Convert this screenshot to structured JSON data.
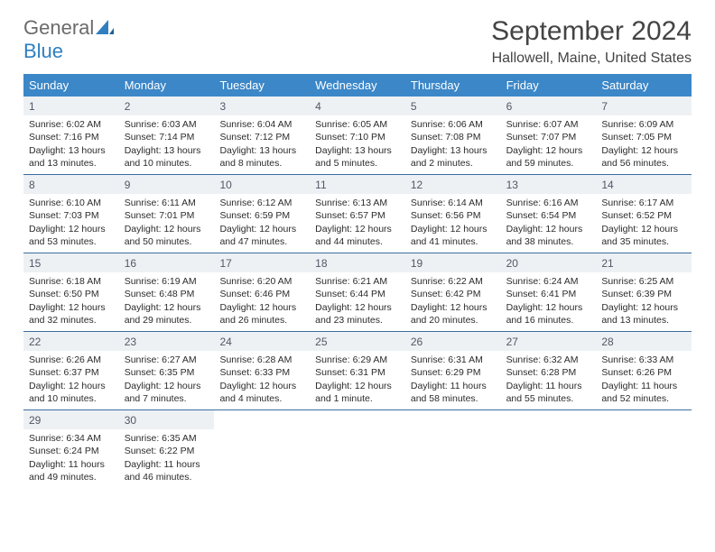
{
  "logo": {
    "text1": "General",
    "text2": "Blue"
  },
  "title": "September 2024",
  "location": "Hallowell, Maine, United States",
  "colors": {
    "header_bg": "#3b87c8",
    "header_text": "#ffffff",
    "daynum_bg": "#eef1f4",
    "row_border": "#3b6ea0",
    "logo_blue": "#2f7fc1",
    "logo_gray": "#6b6b6b"
  },
  "day_headers": [
    "Sunday",
    "Monday",
    "Tuesday",
    "Wednesday",
    "Thursday",
    "Friday",
    "Saturday"
  ],
  "weeks": [
    [
      {
        "n": "1",
        "sr": "Sunrise: 6:02 AM",
        "ss": "Sunset: 7:16 PM",
        "d1": "Daylight: 13 hours",
        "d2": "and 13 minutes."
      },
      {
        "n": "2",
        "sr": "Sunrise: 6:03 AM",
        "ss": "Sunset: 7:14 PM",
        "d1": "Daylight: 13 hours",
        "d2": "and 10 minutes."
      },
      {
        "n": "3",
        "sr": "Sunrise: 6:04 AM",
        "ss": "Sunset: 7:12 PM",
        "d1": "Daylight: 13 hours",
        "d2": "and 8 minutes."
      },
      {
        "n": "4",
        "sr": "Sunrise: 6:05 AM",
        "ss": "Sunset: 7:10 PM",
        "d1": "Daylight: 13 hours",
        "d2": "and 5 minutes."
      },
      {
        "n": "5",
        "sr": "Sunrise: 6:06 AM",
        "ss": "Sunset: 7:08 PM",
        "d1": "Daylight: 13 hours",
        "d2": "and 2 minutes."
      },
      {
        "n": "6",
        "sr": "Sunrise: 6:07 AM",
        "ss": "Sunset: 7:07 PM",
        "d1": "Daylight: 12 hours",
        "d2": "and 59 minutes."
      },
      {
        "n": "7",
        "sr": "Sunrise: 6:09 AM",
        "ss": "Sunset: 7:05 PM",
        "d1": "Daylight: 12 hours",
        "d2": "and 56 minutes."
      }
    ],
    [
      {
        "n": "8",
        "sr": "Sunrise: 6:10 AM",
        "ss": "Sunset: 7:03 PM",
        "d1": "Daylight: 12 hours",
        "d2": "and 53 minutes."
      },
      {
        "n": "9",
        "sr": "Sunrise: 6:11 AM",
        "ss": "Sunset: 7:01 PM",
        "d1": "Daylight: 12 hours",
        "d2": "and 50 minutes."
      },
      {
        "n": "10",
        "sr": "Sunrise: 6:12 AM",
        "ss": "Sunset: 6:59 PM",
        "d1": "Daylight: 12 hours",
        "d2": "and 47 minutes."
      },
      {
        "n": "11",
        "sr": "Sunrise: 6:13 AM",
        "ss": "Sunset: 6:57 PM",
        "d1": "Daylight: 12 hours",
        "d2": "and 44 minutes."
      },
      {
        "n": "12",
        "sr": "Sunrise: 6:14 AM",
        "ss": "Sunset: 6:56 PM",
        "d1": "Daylight: 12 hours",
        "d2": "and 41 minutes."
      },
      {
        "n": "13",
        "sr": "Sunrise: 6:16 AM",
        "ss": "Sunset: 6:54 PM",
        "d1": "Daylight: 12 hours",
        "d2": "and 38 minutes."
      },
      {
        "n": "14",
        "sr": "Sunrise: 6:17 AM",
        "ss": "Sunset: 6:52 PM",
        "d1": "Daylight: 12 hours",
        "d2": "and 35 minutes."
      }
    ],
    [
      {
        "n": "15",
        "sr": "Sunrise: 6:18 AM",
        "ss": "Sunset: 6:50 PM",
        "d1": "Daylight: 12 hours",
        "d2": "and 32 minutes."
      },
      {
        "n": "16",
        "sr": "Sunrise: 6:19 AM",
        "ss": "Sunset: 6:48 PM",
        "d1": "Daylight: 12 hours",
        "d2": "and 29 minutes."
      },
      {
        "n": "17",
        "sr": "Sunrise: 6:20 AM",
        "ss": "Sunset: 6:46 PM",
        "d1": "Daylight: 12 hours",
        "d2": "and 26 minutes."
      },
      {
        "n": "18",
        "sr": "Sunrise: 6:21 AM",
        "ss": "Sunset: 6:44 PM",
        "d1": "Daylight: 12 hours",
        "d2": "and 23 minutes."
      },
      {
        "n": "19",
        "sr": "Sunrise: 6:22 AM",
        "ss": "Sunset: 6:42 PM",
        "d1": "Daylight: 12 hours",
        "d2": "and 20 minutes."
      },
      {
        "n": "20",
        "sr": "Sunrise: 6:24 AM",
        "ss": "Sunset: 6:41 PM",
        "d1": "Daylight: 12 hours",
        "d2": "and 16 minutes."
      },
      {
        "n": "21",
        "sr": "Sunrise: 6:25 AM",
        "ss": "Sunset: 6:39 PM",
        "d1": "Daylight: 12 hours",
        "d2": "and 13 minutes."
      }
    ],
    [
      {
        "n": "22",
        "sr": "Sunrise: 6:26 AM",
        "ss": "Sunset: 6:37 PM",
        "d1": "Daylight: 12 hours",
        "d2": "and 10 minutes."
      },
      {
        "n": "23",
        "sr": "Sunrise: 6:27 AM",
        "ss": "Sunset: 6:35 PM",
        "d1": "Daylight: 12 hours",
        "d2": "and 7 minutes."
      },
      {
        "n": "24",
        "sr": "Sunrise: 6:28 AM",
        "ss": "Sunset: 6:33 PM",
        "d1": "Daylight: 12 hours",
        "d2": "and 4 minutes."
      },
      {
        "n": "25",
        "sr": "Sunrise: 6:29 AM",
        "ss": "Sunset: 6:31 PM",
        "d1": "Daylight: 12 hours",
        "d2": "and 1 minute."
      },
      {
        "n": "26",
        "sr": "Sunrise: 6:31 AM",
        "ss": "Sunset: 6:29 PM",
        "d1": "Daylight: 11 hours",
        "d2": "and 58 minutes."
      },
      {
        "n": "27",
        "sr": "Sunrise: 6:32 AM",
        "ss": "Sunset: 6:28 PM",
        "d1": "Daylight: 11 hours",
        "d2": "and 55 minutes."
      },
      {
        "n": "28",
        "sr": "Sunrise: 6:33 AM",
        "ss": "Sunset: 6:26 PM",
        "d1": "Daylight: 11 hours",
        "d2": "and 52 minutes."
      }
    ],
    [
      {
        "n": "29",
        "sr": "Sunrise: 6:34 AM",
        "ss": "Sunset: 6:24 PM",
        "d1": "Daylight: 11 hours",
        "d2": "and 49 minutes."
      },
      {
        "n": "30",
        "sr": "Sunrise: 6:35 AM",
        "ss": "Sunset: 6:22 PM",
        "d1": "Daylight: 11 hours",
        "d2": "and 46 minutes."
      },
      null,
      null,
      null,
      null,
      null
    ]
  ]
}
